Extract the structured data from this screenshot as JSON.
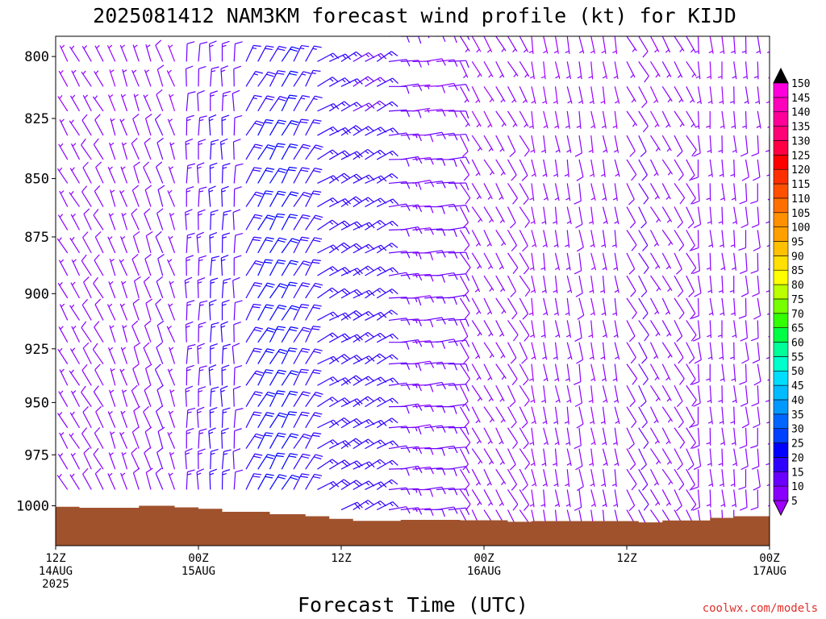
{
  "chart_data": {
    "type": "wind_barb_profile",
    "title": "2025081412 NAM3KM forecast wind profile (kt) for KIJD",
    "xlabel": "Forecast Time (UTC)",
    "ylabel": "",
    "y_axis": {
      "unit": "hPa",
      "range": [
        1020,
        792
      ],
      "ticks": [
        800,
        825,
        850,
        875,
        900,
        925,
        950,
        975,
        1000
      ],
      "tick_labels": [
        "800",
        "825",
        "850",
        "875",
        "900",
        "925",
        "950",
        "975",
        "1000"
      ]
    },
    "x_axis": {
      "unit": "forecast hour",
      "range": [
        0,
        60
      ],
      "ticks": [
        {
          "hour": 0,
          "line1": "12Z",
          "line2": "14AUG",
          "line3": "2025"
        },
        {
          "hour": 12,
          "line1": "00Z",
          "line2": "15AUG",
          "line3": ""
        },
        {
          "hour": 24,
          "line1": "12Z",
          "line2": "",
          "line3": ""
        },
        {
          "hour": 36,
          "line1": "00Z",
          "line2": "16AUG",
          "line3": ""
        },
        {
          "hour": 48,
          "line1": "12Z",
          "line2": "",
          "line3": ""
        },
        {
          "hour": 60,
          "line1": "00Z",
          "line2": "17AUG",
          "line3": ""
        }
      ]
    },
    "colorbar": {
      "unit": "kt",
      "levels": [
        5,
        10,
        15,
        20,
        25,
        30,
        35,
        40,
        45,
        50,
        55,
        60,
        65,
        70,
        75,
        80,
        85,
        90,
        95,
        100,
        105,
        110,
        115,
        120,
        125,
        130,
        135,
        140,
        145,
        150
      ],
      "labels": [
        "5",
        "10",
        "15",
        "20",
        "25",
        "30",
        "35",
        "40",
        "45",
        "50",
        "55",
        "60",
        "65",
        "70",
        "75",
        "80",
        "85",
        "90",
        "95",
        "100",
        "105",
        "110",
        "115",
        "120",
        "125",
        "130",
        "135",
        "140",
        "145",
        "150"
      ],
      "colors": [
        "#8a00ff",
        "#6a00ff",
        "#3000ff",
        "#0000ff",
        "#0040ff",
        "#0066ff",
        "#0099ff",
        "#00bbff",
        "#00ddff",
        "#00ffcc",
        "#00ff99",
        "#00ff44",
        "#33ff00",
        "#77ff00",
        "#bbff00",
        "#ffff00",
        "#ffe000",
        "#ffc000",
        "#ffa000",
        "#ff9000",
        "#ff7000",
        "#ff5000",
        "#ff3000",
        "#ff0000",
        "#ff0044",
        "#ff0077",
        "#ff0099",
        "#ff00bb",
        "#ff00dd"
      ],
      "under_color": "#a000ff",
      "over_color": "#000000"
    },
    "terrain": {
      "color": "#a0522d",
      "surface_pressure_hpa": [
        {
          "hour": 0,
          "p": 1000.5
        },
        {
          "hour": 2,
          "p": 1001.0
        },
        {
          "hour": 7,
          "p": 1000.0
        },
        {
          "hour": 10,
          "p": 1000.8
        },
        {
          "hour": 12,
          "p": 1001.5
        },
        {
          "hour": 14,
          "p": 1003.0
        },
        {
          "hour": 18,
          "p": 1004.2
        },
        {
          "hour": 21,
          "p": 1005.2
        },
        {
          "hour": 23,
          "p": 1006.5
        },
        {
          "hour": 25,
          "p": 1007.5
        },
        {
          "hour": 29,
          "p": 1007.0
        },
        {
          "hour": 34,
          "p": 1007.2
        },
        {
          "hour": 38,
          "p": 1008.0
        },
        {
          "hour": 40,
          "p": 1007.6
        },
        {
          "hour": 49,
          "p": 1008.3
        },
        {
          "hour": 51,
          "p": 1007.3
        },
        {
          "hour": 55,
          "p": 1006.0
        },
        {
          "hour": 57,
          "p": 1005.2
        },
        {
          "hour": 60,
          "p": 1005.0
        }
      ]
    },
    "wind_levels_hpa": [
      792,
      802,
      812,
      822,
      832,
      842,
      852,
      862,
      872,
      882,
      892,
      902,
      912,
      922,
      932,
      942,
      952,
      962,
      972,
      982,
      992,
      1002
    ],
    "wind_segments": [
      {
        "h0": 0,
        "h1": 5,
        "direction_deg": 330,
        "speed_kt": 7
      },
      {
        "h0": 5,
        "h1": 11,
        "direction_deg": 340,
        "speed_kt": 8
      },
      {
        "h0": 11,
        "h1": 16,
        "direction_deg": 0,
        "speed_kt": 14
      },
      {
        "h0": 16,
        "h1": 22,
        "direction_deg": 30,
        "speed_kt": 20
      },
      {
        "h0": 22,
        "h1": 28,
        "direction_deg": 60,
        "speed_kt": 17
      },
      {
        "h0": 28,
        "h1": 34,
        "direction_deg": 85,
        "speed_kt": 11
      },
      {
        "h0": 34,
        "h1": 40,
        "direction_deg": 150,
        "speed_kt": 7
      },
      {
        "h0": 40,
        "h1": 48,
        "direction_deg": 170,
        "speed_kt": 6
      },
      {
        "h0": 48,
        "h1": 54,
        "direction_deg": 150,
        "speed_kt": 8
      },
      {
        "h0": 54,
        "h1": 60,
        "direction_deg": 175,
        "speed_kt": 7
      }
    ],
    "grid": false,
    "legend": "right colorbar"
  },
  "credit": "coolwx.com/models"
}
